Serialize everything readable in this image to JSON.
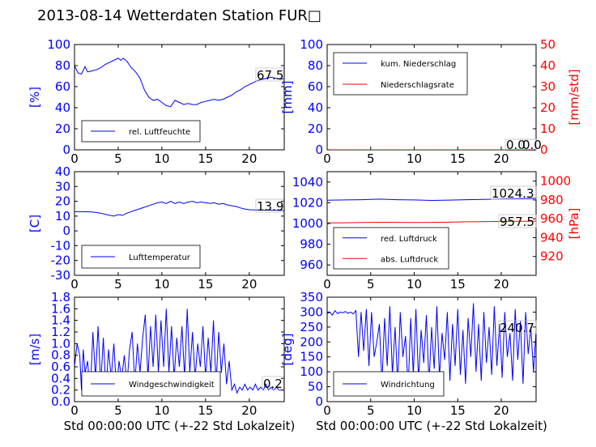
{
  "figure": {
    "title": "2013-08-14 Wetterdaten Station FUR",
    "title_glyph": "□"
  },
  "colors": {
    "blue": "#0000ff",
    "red": "#ff0000",
    "black": "#000000"
  },
  "chart_data": [
    {
      "id": "humidity",
      "type": "line",
      "xlim": [
        0,
        24
      ],
      "ylim": [
        0,
        100
      ],
      "xticks": [
        0,
        5,
        10,
        15,
        20
      ],
      "yticks": [
        0,
        20,
        40,
        60,
        80,
        100
      ],
      "ylabel": "[%]",
      "ytick_color": "#0000ff",
      "legend": [
        "rel. Luftfeuchte"
      ],
      "legend_loc": "lower-left",
      "last_value_label": "67.5",
      "series": [
        {
          "name": "rel. Luftfeuchte",
          "color": "#0000ff",
          "x": [
            0,
            0.4,
            0.8,
            1.2,
            1.5,
            2,
            2.5,
            3,
            3.5,
            4,
            4.5,
            5,
            5.3,
            5.6,
            6,
            6.5,
            7,
            7.5,
            8,
            8.5,
            9,
            9.5,
            10,
            10.5,
            11,
            11.5,
            12,
            12.5,
            13,
            13.5,
            14,
            14.5,
            15,
            15.5,
            16,
            16.5,
            17,
            17.5,
            18,
            18.5,
            19,
            19.5,
            20,
            20.5,
            21,
            21.5,
            22,
            22.5,
            23,
            23.5,
            24
          ],
          "y": [
            80,
            73,
            72,
            79,
            74,
            75,
            76,
            78,
            81,
            83,
            85,
            87,
            85,
            87,
            84,
            78,
            74,
            68,
            57,
            50,
            47,
            48,
            45,
            42,
            41,
            47,
            45,
            43,
            44,
            43,
            43,
            45,
            46,
            47,
            48,
            47,
            48,
            50,
            52,
            55,
            57,
            60,
            62,
            64,
            66,
            67,
            68,
            69,
            68,
            67,
            67.5
          ]
        }
      ]
    },
    {
      "id": "precipitation",
      "type": "line",
      "xlim": [
        0,
        24
      ],
      "ylim": [
        0,
        100
      ],
      "xticks": [
        0,
        5,
        10,
        15,
        20
      ],
      "yticks": [
        0,
        20,
        40,
        60,
        80,
        100
      ],
      "ylabel": "[mm]",
      "ytick_color": "#0000ff",
      "y2lim": [
        0,
        50
      ],
      "y2ticks": [
        0,
        10,
        20,
        30,
        40,
        50
      ],
      "y2label": "[mm/std]",
      "y2tick_color": "#ff0000",
      "legend": [
        "kum. Niederschlag",
        "Niederschlagsrate"
      ],
      "legend_loc": "upper-left",
      "last_value_label": "0.0",
      "last_value_label_2": "0.0",
      "series": [
        {
          "name": "kum. Niederschlag",
          "color": "#0000ff",
          "x": [
            0,
            24
          ],
          "y": [
            0,
            0
          ]
        },
        {
          "name": "Niederschlagsrate",
          "color": "#ff0000",
          "x": [
            0,
            24
          ],
          "y": [
            0,
            0
          ],
          "axis": "right"
        }
      ]
    },
    {
      "id": "temperature",
      "type": "line",
      "xlim": [
        0,
        24
      ],
      "ylim": [
        -30,
        40
      ],
      "xticks": [
        0,
        5,
        10,
        15,
        20
      ],
      "yticks": [
        -30,
        -20,
        -10,
        0,
        10,
        20,
        30,
        40
      ],
      "ylabel": "[C]",
      "ytick_color": "#0000ff",
      "legend": [
        "Lufttemperatur"
      ],
      "legend_loc": "lower-left",
      "last_value_label": "13.9",
      "series": [
        {
          "name": "Lufttemperatur",
          "color": "#0000ff",
          "x": [
            0,
            1,
            2,
            3,
            4,
            4.5,
            5,
            5.5,
            6,
            7,
            8,
            9,
            9.5,
            10,
            10.5,
            11,
            11.5,
            12,
            12.5,
            13,
            13.5,
            14,
            14.5,
            15,
            15.5,
            16,
            16.5,
            17,
            17.5,
            18,
            18.5,
            19,
            19.5,
            20,
            21,
            22,
            23,
            24
          ],
          "y": [
            13,
            13,
            12.8,
            12,
            10.5,
            10,
            11,
            10.5,
            12,
            14,
            16,
            18,
            19,
            19.5,
            18.5,
            20,
            18.5,
            19.5,
            18.5,
            19.5,
            20,
            19,
            19.5,
            19,
            18.5,
            19,
            18,
            18.5,
            17.5,
            17,
            16.5,
            15.5,
            14.8,
            14.3,
            14.1,
            14,
            13.9,
            13.9
          ]
        }
      ]
    },
    {
      "id": "pressure",
      "type": "line",
      "xlim": [
        0,
        24
      ],
      "ylim": [
        950,
        1050
      ],
      "xticks": [
        0,
        5,
        10,
        15,
        20
      ],
      "yticks": [
        960,
        980,
        1000,
        1020,
        1040
      ],
      "ytick_color": "#0000ff",
      "y2lim": [
        900,
        1010
      ],
      "y2ticks": [
        920,
        940,
        960,
        980,
        1000
      ],
      "y2label": "[hPa]",
      "y2tick_color": "#ff0000",
      "legend": [
        "red. Luftdruck",
        "abs. Luftdruck"
      ],
      "legend_loc": "lower-left",
      "last_value_label": "1024.3",
      "last_value_label_2": "957.5",
      "series": [
        {
          "name": "red. Luftdruck",
          "color": "#0000ff",
          "x": [
            0,
            2,
            4,
            6,
            8,
            10,
            12,
            14,
            16,
            18,
            20,
            22,
            24
          ],
          "y": [
            1022.5,
            1022.7,
            1023,
            1023.5,
            1023,
            1022.7,
            1022.3,
            1022.6,
            1023,
            1023.2,
            1023.7,
            1024,
            1024.3
          ]
        },
        {
          "name": "abs. Luftdruck",
          "color": "#ff0000",
          "axis": "right",
          "x": [
            0,
            2,
            4,
            6,
            8,
            10,
            12,
            14,
            16,
            18,
            20,
            22,
            24
          ],
          "y": [
            955.7,
            955.8,
            956,
            956.3,
            956.2,
            956.1,
            956.2,
            956.4,
            956.8,
            957,
            957.2,
            957.4,
            957.5
          ]
        }
      ]
    },
    {
      "id": "windspeed",
      "type": "line",
      "xlim": [
        0,
        24
      ],
      "ylim": [
        0,
        1.8
      ],
      "xticks": [
        0,
        5,
        10,
        15,
        20
      ],
      "yticks": [
        0,
        0.2,
        0.4,
        0.6,
        0.8,
        1.0,
        1.2,
        1.4,
        1.6,
        1.8
      ],
      "ytick_labels": [
        "0.0",
        "0.2",
        "0.4",
        "0.6",
        "0.8",
        "1.0",
        "1.2",
        "1.4",
        "1.6",
        "1.8"
      ],
      "xlabel": "Std 00:00:00 UTC (+-22 Std Lokalzeit)",
      "ylabel": "[m/s]",
      "ytick_color": "#0000ff",
      "legend": [
        "Windgeschwindigkeit"
      ],
      "legend_loc": "lower-left",
      "last_value_label": "0.2",
      "series": [
        {
          "name": "Windgeschwindigkeit",
          "color": "#0000ff",
          "x": [
            0,
            0.3,
            0.6,
            0.8,
            1.0,
            1.2,
            1.5,
            1.8,
            2.1,
            2.4,
            2.7,
            3.0,
            3.3,
            3.6,
            3.9,
            4.2,
            4.5,
            4.8,
            5.1,
            5.4,
            5.7,
            6.0,
            6.3,
            6.6,
            6.9,
            7.2,
            7.5,
            7.8,
            8.1,
            8.4,
            8.7,
            9.0,
            9.3,
            9.6,
            9.9,
            10.2,
            10.5,
            10.8,
            11.1,
            11.4,
            11.7,
            12.0,
            12.3,
            12.6,
            12.9,
            13.2,
            13.5,
            13.8,
            14.1,
            14.4,
            14.7,
            15.0,
            15.3,
            15.6,
            15.9,
            16.2,
            16.5,
            16.8,
            17.1,
            17.4,
            17.7,
            18.0,
            18.3,
            18.6,
            18.9,
            19.2,
            19.5,
            19.8,
            20.1,
            20.4,
            20.7,
            21.0,
            21.3,
            21.6,
            21.9,
            22.2,
            22.5,
            22.8,
            23.1,
            23.4,
            23.7,
            24.0
          ],
          "y": [
            0.6,
            1.0,
            0.8,
            0.2,
            0.9,
            0.5,
            0.7,
            0.1,
            1.2,
            0.4,
            1.3,
            0.3,
            1.1,
            0.2,
            0.9,
            0.4,
            1.0,
            0.2,
            0.7,
            0.4,
            0.8,
            0.3,
            0.9,
            1.2,
            0.3,
            1.0,
            0.5,
            1.1,
            1.5,
            0.4,
            1.3,
            0.6,
            1.5,
            0.5,
            1.4,
            0.6,
            1.6,
            0.5,
            1.3,
            0.4,
            1.1,
            0.6,
            1.3,
            0.4,
            1.6,
            0.5,
            1.2,
            0.4,
            1.0,
            0.6,
            1.3,
            0.4,
            1.1,
            0.5,
            1.4,
            0.3,
            1.2,
            0.5,
            1.0,
            0.3,
            0.7,
            0.2,
            0.3,
            0.15,
            0.25,
            0.2,
            0.3,
            0.2,
            0.25,
            0.2,
            0.3,
            0.2,
            0.25,
            0.2,
            0.3,
            0.2,
            0.25,
            0.2,
            0.25,
            0.2,
            0.2,
            0.2
          ]
        }
      ]
    },
    {
      "id": "winddirection",
      "type": "line",
      "xlim": [
        0,
        24
      ],
      "ylim": [
        0,
        350
      ],
      "xticks": [
        0,
        5,
        10,
        15,
        20
      ],
      "yticks": [
        0,
        50,
        100,
        150,
        200,
        250,
        300,
        350
      ],
      "xlabel": "Std 00:00:00 UTC (+-22 Std Lokalzeit)",
      "ylabel": "[deg]",
      "ytick_color": "#0000ff",
      "legend": [
        "Windrichtung"
      ],
      "legend_loc": "lower-left",
      "last_value_label": "240.7",
      "series": [
        {
          "name": "Windrichtung",
          "color": "#0000ff",
          "x": [
            0,
            0.3,
            0.6,
            0.9,
            1.2,
            1.5,
            1.8,
            2.1,
            2.4,
            2.7,
            3.0,
            3.3,
            3.6,
            3.9,
            4.2,
            4.5,
            4.8,
            5.1,
            5.4,
            5.7,
            6.0,
            6.3,
            6.6,
            6.9,
            7.2,
            7.5,
            7.8,
            8.1,
            8.4,
            8.7,
            9.0,
            9.3,
            9.6,
            9.9,
            10.2,
            10.5,
            10.8,
            11.1,
            11.4,
            11.7,
            12.0,
            12.3,
            12.6,
            12.9,
            13.2,
            13.5,
            13.8,
            14.1,
            14.4,
            14.7,
            15.0,
            15.3,
            15.6,
            15.9,
            16.2,
            16.5,
            16.8,
            17.1,
            17.4,
            17.7,
            18.0,
            18.3,
            18.6,
            18.9,
            19.2,
            19.5,
            19.8,
            20.1,
            20.4,
            20.7,
            21.0,
            21.3,
            21.6,
            21.9,
            22.2,
            22.5,
            22.8,
            23.1,
            23.4,
            23.7,
            24.0
          ],
          "y": [
            295,
            300,
            290,
            305,
            295,
            300,
            298,
            302,
            296,
            300,
            294,
            305,
            150,
            300,
            170,
            310,
            120,
            300,
            150,
            200,
            260,
            60,
            280,
            120,
            320,
            90,
            250,
            60,
            300,
            150,
            220,
            40,
            280,
            90,
            310,
            70,
            240,
            130,
            290,
            60,
            250,
            110,
            320,
            80,
            230,
            140,
            300,
            70,
            260,
            120,
            310,
            90,
            240,
            60,
            280,
            150,
            330,
            100,
            260,
            70,
            300,
            130,
            250,
            90,
            320,
            120,
            260,
            80,
            300,
            150,
            230,
            70,
            310,
            140,
            270,
            60,
            300,
            160,
            250,
            100,
            240.7
          ]
        }
      ]
    }
  ]
}
